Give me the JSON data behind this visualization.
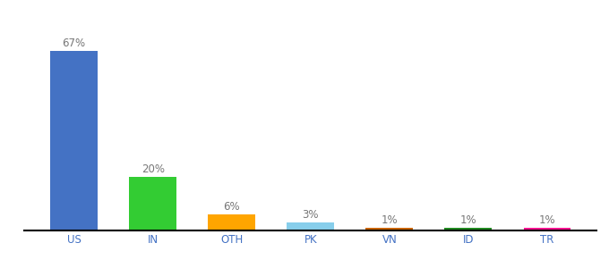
{
  "categories": [
    "US",
    "IN",
    "OTH",
    "PK",
    "VN",
    "ID",
    "TR"
  ],
  "values": [
    67,
    20,
    6,
    3,
    1,
    1,
    1
  ],
  "labels": [
    "67%",
    "20%",
    "6%",
    "3%",
    "1%",
    "1%",
    "1%"
  ],
  "bar_colors": [
    "#4472C4",
    "#33CC33",
    "#FFA500",
    "#87CEEB",
    "#CC6600",
    "#228B22",
    "#FF1493"
  ],
  "background_color": "#ffffff",
  "ylim": [
    0,
    78
  ],
  "label_fontsize": 8.5,
  "tick_fontsize": 8.5,
  "tick_color": "#4472C4"
}
